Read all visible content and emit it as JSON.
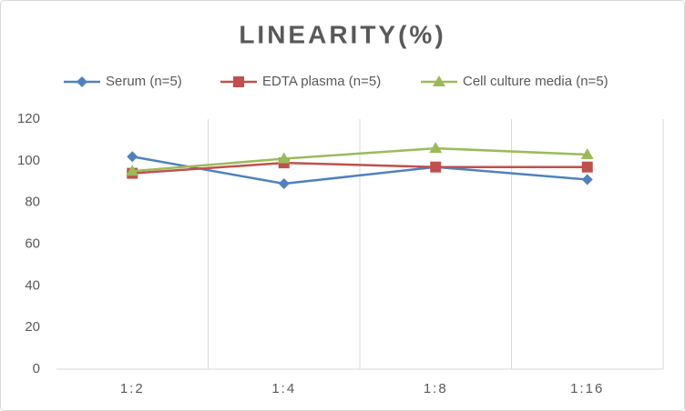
{
  "chart_data": {
    "type": "line",
    "title": "LINEARITY(%)",
    "categories": [
      "1:2",
      "1:4",
      "1:8",
      "1:16"
    ],
    "series": [
      {
        "name": "Serum (n=5)",
        "color": "#4f81bd",
        "marker": "diamond",
        "values": [
          102,
          89,
          97,
          91
        ]
      },
      {
        "name": "EDTA plasma (n=5)",
        "color": "#c0504d",
        "marker": "square",
        "values": [
          94,
          99,
          97,
          97
        ]
      },
      {
        "name": "Cell culture media (n=5)",
        "color": "#9bbb59",
        "marker": "triangle",
        "values": [
          95,
          101,
          106,
          103
        ]
      }
    ],
    "ylim": [
      0,
      120
    ],
    "yticks": [
      0,
      20,
      40,
      60,
      80,
      100,
      120
    ],
    "grid": "vertical",
    "legend": "top"
  }
}
